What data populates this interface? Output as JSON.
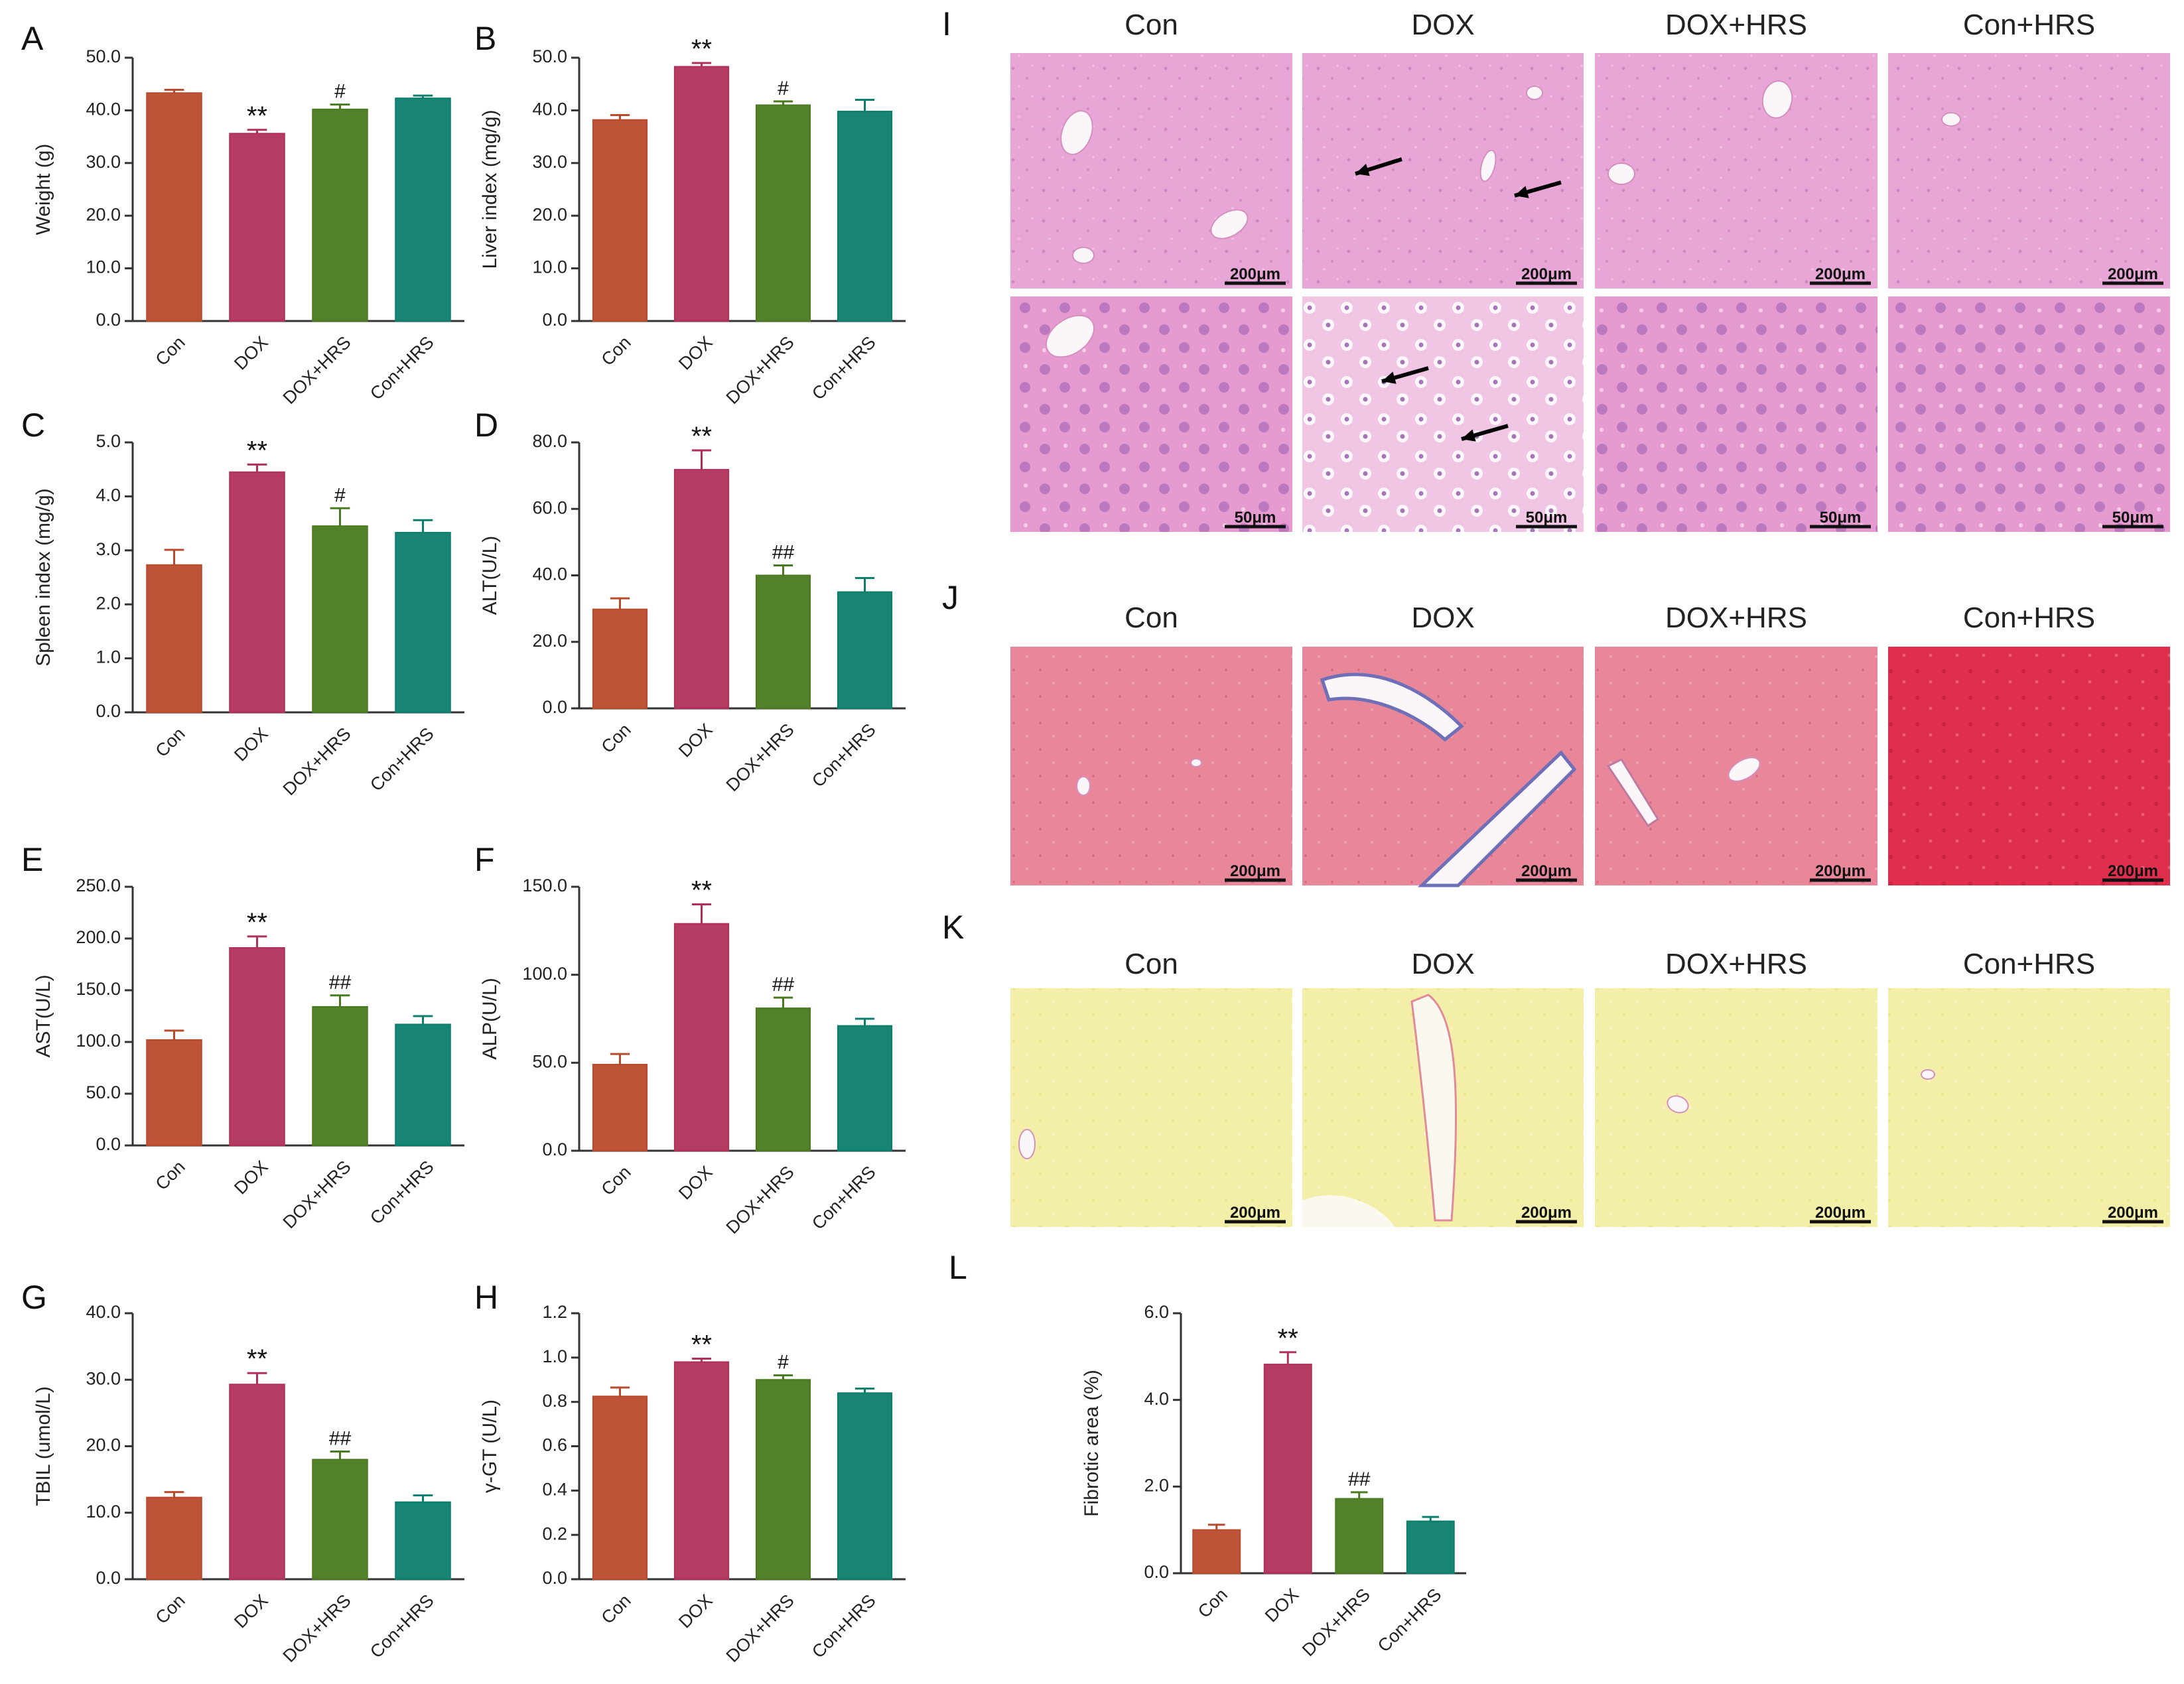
{
  "groups": [
    "Con",
    "DOX",
    "DOX+HRS",
    "Con+HRS"
  ],
  "colors": {
    "Con": "#b94a2c",
    "DOX": "#b0305a",
    "DOX+HRS": "#4a7a20",
    "Con+HRS": "#0c7e6c",
    "axis": "#333333",
    "label": "#111111"
  },
  "chart_data": [
    {
      "panel": "A",
      "type": "bar",
      "categories": [
        "Con",
        "DOX",
        "DOX+HRS",
        "Con+HRS"
      ],
      "values": [
        43.3,
        35.6,
        40.2,
        42.3
      ],
      "errors": [
        0.6,
        0.7,
        0.9,
        0.5
      ],
      "annotations": [
        "",
        "**",
        "#",
        ""
      ],
      "ylabel": "Weight (g)",
      "ylim": [
        0,
        50
      ],
      "ticks": [
        "0.0",
        "10.0",
        "20.0",
        "30.0",
        "40.0",
        "50.0"
      ]
    },
    {
      "panel": "B",
      "type": "bar",
      "categories": [
        "Con",
        "DOX",
        "DOX+HRS",
        "Con+HRS"
      ],
      "values": [
        38.2,
        48.3,
        41.0,
        39.8
      ],
      "errors": [
        0.9,
        0.7,
        0.7,
        2.2
      ],
      "annotations": [
        "",
        "**",
        "#",
        ""
      ],
      "ylabel": "Liver index (mg/g)",
      "ylim": [
        0,
        50
      ],
      "ticks": [
        "0.0",
        "10.0",
        "20.0",
        "30.0",
        "40.0",
        "50.0"
      ]
    },
    {
      "panel": "C",
      "type": "bar",
      "categories": [
        "Con",
        "DOX",
        "DOX+HRS",
        "Con+HRS"
      ],
      "values": [
        2.73,
        4.45,
        3.45,
        3.33
      ],
      "errors": [
        0.28,
        0.14,
        0.33,
        0.23
      ],
      "annotations": [
        "",
        "**",
        "#",
        ""
      ],
      "ylabel": "Spleen index (mg/g)",
      "ylim": [
        0,
        5
      ],
      "ticks": [
        "0.0",
        "1.0",
        "2.0",
        "3.0",
        "4.0",
        "5.0"
      ]
    },
    {
      "panel": "D",
      "type": "bar",
      "categories": [
        "Con",
        "DOX",
        "DOX+HRS",
        "Con+HRS"
      ],
      "values": [
        29.8,
        71.8,
        40.0,
        35.0
      ],
      "errors": [
        3.3,
        5.8,
        3.0,
        4.2
      ],
      "annotations": [
        "",
        "**",
        "##",
        ""
      ],
      "ylabel": "ALT(U/L)",
      "ylim": [
        0,
        80
      ],
      "ticks": [
        "0.0",
        "20.0",
        "40.0",
        "60.0",
        "80.0"
      ]
    },
    {
      "panel": "E",
      "type": "bar",
      "categories": [
        "Con",
        "DOX",
        "DOX+HRS",
        "Con+HRS"
      ],
      "values": [
        102,
        191,
        134,
        117
      ],
      "errors": [
        9,
        11,
        11,
        8
      ],
      "annotations": [
        "",
        "**",
        "##",
        ""
      ],
      "ylabel": "AST(U/L)",
      "ylim": [
        0,
        250
      ],
      "ticks": [
        "0.0",
        "50.0",
        "100.0",
        "150.0",
        "200.0",
        "250.0"
      ]
    },
    {
      "panel": "F",
      "type": "bar",
      "categories": [
        "Con",
        "DOX",
        "DOX+HRS",
        "Con+HRS"
      ],
      "values": [
        49,
        129,
        81,
        71
      ],
      "errors": [
        6,
        11,
        6,
        4
      ],
      "annotations": [
        "",
        "**",
        "##",
        ""
      ],
      "ylabel": "ALP(U/L)",
      "ylim": [
        0,
        150
      ],
      "ticks": [
        "0.0",
        "50.0",
        "100.0",
        "150.0"
      ]
    },
    {
      "panel": "G",
      "type": "bar",
      "categories": [
        "Con",
        "DOX",
        "DOX+HRS",
        "Con+HRS"
      ],
      "values": [
        12.3,
        29.3,
        18.0,
        11.6
      ],
      "errors": [
        0.8,
        1.7,
        1.2,
        1.0
      ],
      "annotations": [
        "",
        "**",
        "##",
        ""
      ],
      "ylabel": "TBIL (umol/L)",
      "ylim": [
        0,
        40
      ],
      "ticks": [
        "0.0",
        "10.0",
        "20.0",
        "30.0",
        "40.0"
      ]
    },
    {
      "panel": "H",
      "type": "bar",
      "categories": [
        "Con",
        "DOX",
        "DOX+HRS",
        "Con+HRS"
      ],
      "values": [
        0.825,
        0.98,
        0.9,
        0.84
      ],
      "errors": [
        0.04,
        0.015,
        0.02,
        0.02
      ],
      "annotations": [
        "",
        "**",
        "#",
        ""
      ],
      "ylabel": "γ-GT (U/L)",
      "ylim": [
        0,
        1.2
      ],
      "ticks": [
        "0.0",
        "0.2",
        "0.4",
        "0.6",
        "0.8",
        "1.0",
        "1.2"
      ]
    },
    {
      "panel": "L",
      "type": "bar",
      "categories": [
        "Con",
        "DOX",
        "DOX+HRS",
        "Con+HRS"
      ],
      "values": [
        1.0,
        4.82,
        1.72,
        1.2
      ],
      "errors": [
        0.12,
        0.28,
        0.15,
        0.1
      ],
      "annotations": [
        "",
        "**",
        "##",
        ""
      ],
      "ylabel": "Fibrotic area (%)",
      "ylim": [
        0,
        6
      ],
      "ticks": [
        "0.0",
        "2.0",
        "4.0",
        "6.0"
      ]
    }
  ],
  "micrographs": [
    {
      "panel": "I",
      "stain": "he",
      "row_scales": [
        "200μm",
        "50μm"
      ],
      "arrows_in": "DOX"
    },
    {
      "panel": "J",
      "stain": "masson",
      "row_scales": [
        "200μm"
      ]
    },
    {
      "panel": "K",
      "stain": "sirius",
      "row_scales": [
        "200μm"
      ]
    }
  ]
}
